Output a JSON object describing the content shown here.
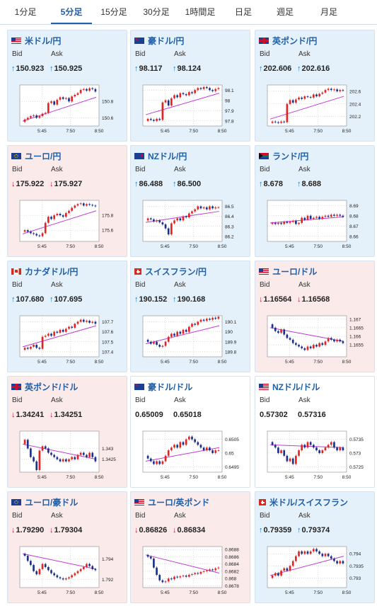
{
  "tabs": [
    {
      "label": "1分足",
      "active": false
    },
    {
      "label": "5分足",
      "active": true
    },
    {
      "label": "15分足",
      "active": false
    },
    {
      "label": "30分足",
      "active": false
    },
    {
      "label": "1時間足",
      "active": false
    },
    {
      "label": "日足",
      "active": false
    },
    {
      "label": "週足",
      "active": false
    },
    {
      "label": "月足",
      "active": false
    }
  ],
  "colors": {
    "accent": "#1f5fa8",
    "up_arrow": "#1a73c7",
    "down_arrow": "#c8102e",
    "up_bg": "#e4f1fb",
    "down_bg": "#fbeaea",
    "candle_up": "#e02424",
    "candle_down": "#1c2f8a",
    "ma": "#c13ad6",
    "trend": "#3aa0d8"
  },
  "bid_label": "Bid",
  "ask_label": "Ask",
  "cards": [
    {
      "name": "米ドル/円",
      "flag": "us",
      "tone": "up",
      "arrow_glyph": "↑",
      "arrow_dir": "up",
      "bid": "150.923",
      "ask": "150.925",
      "chart_data": {
        "type": "candlestick",
        "times": [
          "5:45",
          "7:50",
          "8:50"
        ],
        "y_ticks": [
          "150.8",
          "150.6"
        ],
        "ylim": [
          150.5,
          151.0
        ],
        "path": [
          150.55,
          150.58,
          150.6,
          150.62,
          150.63,
          150.6,
          150.62,
          150.65,
          150.66,
          150.78,
          150.8,
          150.76,
          150.82,
          150.85,
          150.83,
          150.84,
          150.8,
          150.86,
          150.88,
          150.9,
          150.94,
          150.95,
          150.93,
          150.96,
          150.95,
          150.92
        ],
        "ma_from": 150.56,
        "ma_to": 150.85
      }
    },
    {
      "name": "豪ドル/円",
      "flag": "au",
      "tone": "up",
      "arrow_glyph": "↑",
      "arrow_dir": "up",
      "bid": "98.117",
      "ask": "98.124",
      "chart_data": {
        "type": "candlestick",
        "times": [
          "5:45",
          "7:50",
          "8:50"
        ],
        "y_ticks": [
          "98.1",
          "98",
          "97.9",
          "97.8"
        ],
        "ylim": [
          97.75,
          98.15
        ],
        "path": [
          97.8,
          97.82,
          97.81,
          97.8,
          97.82,
          97.81,
          97.98,
          98.0,
          97.95,
          98.02,
          98.05,
          98.03,
          98.07,
          98.06,
          98.05,
          98.08,
          98.07,
          98.1,
          98.12,
          98.11,
          98.13,
          98.12,
          98.1,
          98.09,
          98.11,
          98.12
        ],
        "ma_from": 97.86,
        "ma_to": 98.07
      }
    },
    {
      "name": "英ポンド/円",
      "flag": "gb",
      "tone": "up",
      "arrow_glyph": "↑",
      "arrow_dir": "up",
      "bid": "202.606",
      "ask": "202.616",
      "chart_data": {
        "type": "candlestick",
        "times": [
          "5:45",
          "7:50",
          "8:50"
        ],
        "y_ticks": [
          "202.6",
          "202.4",
          "202.2"
        ],
        "ylim": [
          202.05,
          202.7
        ],
        "path": [
          202.1,
          202.12,
          202.11,
          202.1,
          202.12,
          202.11,
          202.4,
          202.46,
          202.42,
          202.47,
          202.5,
          202.48,
          202.52,
          202.51,
          202.5,
          202.55,
          202.52,
          202.56,
          202.58,
          202.62,
          202.64,
          202.62,
          202.63,
          202.6,
          202.62,
          202.61
        ],
        "ma_from": 202.16,
        "ma_to": 202.52
      }
    },
    {
      "name": "ユーロ/円",
      "flag": "eu",
      "tone": "down",
      "arrow_glyph": "↓",
      "arrow_dir": "down",
      "bid": "175.922",
      "ask": "175.927",
      "chart_data": {
        "type": "candlestick",
        "times": [
          "5:45",
          "7:50",
          "8:50"
        ],
        "y_ticks": [
          "175.8",
          "175.6"
        ],
        "ylim": [
          175.45,
          176.0
        ],
        "path": [
          175.58,
          175.6,
          175.58,
          175.56,
          175.55,
          175.53,
          175.52,
          175.56,
          175.7,
          175.78,
          175.75,
          175.8,
          175.82,
          175.8,
          175.78,
          175.83,
          175.86,
          175.9,
          175.93,
          175.95,
          175.96,
          175.93,
          175.95,
          175.94,
          175.93,
          175.92
        ],
        "ma_from": 175.55,
        "ma_to": 175.86
      }
    },
    {
      "name": "NZドル/円",
      "flag": "nz",
      "tone": "up",
      "arrow_glyph": "↑",
      "arrow_dir": "up",
      "bid": "86.488",
      "ask": "86.500",
      "chart_data": {
        "type": "candlestick",
        "times": [
          "5:45",
          "7:50",
          "8:50"
        ],
        "y_ticks": [
          "86.5",
          "86.4",
          "86.3",
          "86.2"
        ],
        "ylim": [
          86.15,
          86.56
        ],
        "path": [
          86.36,
          86.38,
          86.37,
          86.35,
          86.36,
          86.34,
          86.32,
          86.28,
          86.22,
          86.33,
          86.36,
          86.38,
          86.36,
          86.4,
          86.39,
          86.43,
          86.45,
          86.47,
          86.5,
          86.48,
          86.49,
          86.47,
          86.5,
          86.48,
          86.49,
          86.49
        ],
        "ma_from": 86.34,
        "ma_to": 86.45
      }
    },
    {
      "name": "ランド/円",
      "flag": "za",
      "tone": "up",
      "arrow_glyph": "↑",
      "arrow_dir": "up",
      "bid": "8.678",
      "ask": "8.688",
      "chart_data": {
        "type": "candlestick",
        "times": [
          "5:45",
          "7:50",
          "8:50"
        ],
        "y_ticks": [
          "8.69",
          "8.68",
          "8.67",
          "8.66"
        ],
        "ylim": [
          8.655,
          8.695
        ],
        "path": [
          8.672,
          8.673,
          8.672,
          8.673,
          8.672,
          8.674,
          8.673,
          8.674,
          8.675,
          8.672,
          8.673,
          8.678,
          8.676,
          8.68,
          8.677,
          8.678,
          8.679,
          8.677,
          8.679,
          8.68,
          8.679,
          8.681,
          8.68,
          8.681,
          8.68,
          8.679
        ],
        "ma_from": 8.673,
        "ma_to": 8.679
      }
    },
    {
      "name": "カナダドル/円",
      "flag": "ca",
      "tone": "up",
      "arrow_glyph": "↑",
      "arrow_dir": "up",
      "bid": "107.680",
      "ask": "107.695",
      "chart_data": {
        "type": "candlestick",
        "times": [
          "5:45",
          "7:50",
          "8:50"
        ],
        "y_ticks": [
          "107.7",
          "107.6",
          "107.5",
          "107.4"
        ],
        "ylim": [
          107.35,
          107.76
        ],
        "path": [
          107.42,
          107.44,
          107.43,
          107.45,
          107.47,
          107.44,
          107.43,
          107.55,
          107.56,
          107.58,
          107.56,
          107.6,
          107.59,
          107.62,
          107.6,
          107.63,
          107.65,
          107.64,
          107.68,
          107.7,
          107.72,
          107.7,
          107.71,
          107.69,
          107.7,
          107.68
        ],
        "ma_from": 107.45,
        "ma_to": 107.66
      }
    },
    {
      "name": "スイスフラン/円",
      "flag": "ch",
      "tone": "up",
      "arrow_glyph": "↑",
      "arrow_dir": "up",
      "bid": "190.152",
      "ask": "190.168",
      "chart_data": {
        "type": "candlestick",
        "times": [
          "5:45",
          "7:50",
          "8:50"
        ],
        "y_ticks": [
          "190.1",
          "190",
          "189.9",
          "189.8"
        ],
        "ylim": [
          189.75,
          190.16
        ],
        "path": [
          189.92,
          189.9,
          189.88,
          189.9,
          189.87,
          189.85,
          189.86,
          189.9,
          189.95,
          189.98,
          189.96,
          190.0,
          189.98,
          190.02,
          190.0,
          190.05,
          190.08,
          190.07,
          190.1,
          190.12,
          190.11,
          190.13,
          190.12,
          190.14,
          190.13,
          190.15
        ],
        "ma_from": 189.88,
        "ma_to": 190.06
      }
    },
    {
      "name": "ユーロ/ドル",
      "flag": "us",
      "tone": "down",
      "arrow_glyph": "↓",
      "arrow_dir": "down",
      "bid": "1.16564",
      "ask": "1.16568",
      "chart_data": {
        "type": "candlestick",
        "times": [
          "5:45",
          "7:50",
          "8:50"
        ],
        "y_ticks": [
          "1.167",
          "1.1665",
          "1.166",
          "1.1655"
        ],
        "ylim": [
          1.1648,
          1.1672
        ],
        "path": [
          1.1667,
          1.1665,
          1.1663,
          1.1662,
          1.1664,
          1.1661,
          1.1659,
          1.1658,
          1.1656,
          1.1655,
          1.1654,
          1.1653,
          1.1652,
          1.1654,
          1.1653,
          1.1655,
          1.1654,
          1.1656,
          1.1655,
          1.1657,
          1.1659,
          1.1658,
          1.1657,
          1.1658,
          1.1657,
          1.1656
        ],
        "ma_from": 1.1665,
        "ma_to": 1.1657
      }
    },
    {
      "name": "英ポンド/ドル",
      "flag": "gb",
      "tone": "down",
      "arrow_glyph": "↓",
      "arrow_dir": "down",
      "bid": "1.34241",
      "ask": "1.34251",
      "chart_data": {
        "type": "candlestick",
        "times": [
          "5:45",
          "7:50",
          "8:50"
        ],
        "y_ticks": [
          "1.343",
          "1.3425"
        ],
        "ylim": [
          1.3419,
          1.3438
        ],
        "path": [
          1.3432,
          1.3434,
          1.343,
          1.3426,
          1.3424,
          1.342,
          1.3429,
          1.3431,
          1.343,
          1.3428,
          1.3427,
          1.3426,
          1.3425,
          1.3424,
          1.3425,
          1.3424,
          1.3425,
          1.3426,
          1.3425,
          1.3427,
          1.3428,
          1.3427,
          1.3426,
          1.3428,
          1.3426,
          1.3424
        ],
        "ma_from": 1.3432,
        "ma_to": 1.3425
      }
    },
    {
      "name": "豪ドル/ドル",
      "flag": "au",
      "tone": "flat",
      "arrow_glyph": "",
      "arrow_dir": "none",
      "bid": "0.65009",
      "ask": "0.65018",
      "chart_data": {
        "type": "candlestick",
        "times": [
          "5:45",
          "7:50",
          "8:50"
        ],
        "y_ticks": [
          "0.6505",
          "0.65",
          "0.6495"
        ],
        "ylim": [
          0.6493,
          0.6508
        ],
        "path": [
          0.6499,
          0.6498,
          0.6497,
          0.6496,
          0.6497,
          0.6496,
          0.6497,
          0.6499,
          0.6501,
          0.6502,
          0.6503,
          0.6502,
          0.6504,
          0.6503,
          0.6505,
          0.6506,
          0.6505,
          0.6504,
          0.6503,
          0.6502,
          0.6501,
          0.6502,
          0.6501,
          0.65,
          0.6501,
          0.6501
        ],
        "ma_from": 0.6497,
        "ma_to": 0.6502
      }
    },
    {
      "name": "NZドル/ドル",
      "flag": "us",
      "tone": "flat",
      "arrow_glyph": "",
      "arrow_dir": "none",
      "bid": "0.57302",
      "ask": "0.57316",
      "chart_data": {
        "type": "candlestick",
        "times": [
          "5:45",
          "7:50",
          "8:50"
        ],
        "y_ticks": [
          "0.5735",
          "0.573",
          "0.5725"
        ],
        "ylim": [
          0.5723,
          0.5738
        ],
        "path": [
          0.5734,
          0.5733,
          0.5732,
          0.573,
          0.5731,
          0.5729,
          0.5727,
          0.5728,
          0.5726,
          0.5729,
          0.5731,
          0.5733,
          0.5732,
          0.5734,
          0.5733,
          0.5732,
          0.5731,
          0.573,
          0.5731,
          0.5732,
          0.5733,
          0.5734,
          0.5732,
          0.5731,
          0.5732,
          0.5731
        ],
        "ma_from": 0.5733,
        "ma_to": 0.5732
      }
    },
    {
      "name": "ユーロ/豪ドル",
      "flag": "eu",
      "tone": "down",
      "arrow_glyph": "↓",
      "arrow_dir": "down",
      "bid": "1.79290",
      "ask": "1.79304",
      "chart_data": {
        "type": "candlestick",
        "times": [
          "5:45",
          "7:50",
          "8:50"
        ],
        "y_ticks": [
          "1.794",
          "1.792"
        ],
        "ylim": [
          1.7912,
          1.7952
        ],
        "path": [
          1.7945,
          1.7943,
          1.7938,
          1.7934,
          1.7928,
          1.7925,
          1.793,
          1.7935,
          1.7932,
          1.7929,
          1.7926,
          1.7924,
          1.7922,
          1.7921,
          1.792,
          1.7921,
          1.7922,
          1.7924,
          1.7926,
          1.7928,
          1.793,
          1.7932,
          1.7935,
          1.7933,
          1.793,
          1.7929
        ],
        "ma_from": 1.7945,
        "ma_to": 1.793
      }
    },
    {
      "name": "ユーロ/英ポンド",
      "flag": "us",
      "tone": "down",
      "arrow_glyph": "↓",
      "arrow_dir": "down",
      "bid": "0.86826",
      "ask": "0.86834",
      "chart_data": {
        "type": "candlestick",
        "times": [
          "5:45",
          "7:50",
          "8:50"
        ],
        "y_ticks": [
          "0.8688",
          "0.8686",
          "0.8684",
          "0.8682",
          "0.868",
          "0.8678"
        ],
        "ylim": [
          0.86775,
          0.86888
        ],
        "path": [
          0.86865,
          0.8686,
          0.86855,
          0.8683,
          0.8681,
          0.86795,
          0.8679,
          0.86792,
          0.868,
          0.86798,
          0.86805,
          0.86803,
          0.86806,
          0.86808,
          0.86805,
          0.8681,
          0.86812,
          0.86815,
          0.86813,
          0.86818,
          0.8682,
          0.86822,
          0.86825,
          0.86823,
          0.86828,
          0.8683
        ],
        "ma_from": 0.86865,
        "ma_to": 0.86815
      }
    },
    {
      "name": "米ドル/スイスフラン",
      "flag": "ch",
      "tone": "up",
      "arrow_glyph": "↑",
      "arrow_dir": "up",
      "bid": "0.79359",
      "ask": "0.79374",
      "chart_data": {
        "type": "candlestick",
        "times": [
          "5:45",
          "7:50",
          "8:50"
        ],
        "y_ticks": [
          "0.794",
          "0.7935",
          "0.793"
        ],
        "ylim": [
          0.7926,
          0.7943
        ],
        "path": [
          0.793,
          0.7931,
          0.7932,
          0.7931,
          0.7933,
          0.7934,
          0.7933,
          0.7935,
          0.7937,
          0.7939,
          0.7941,
          0.794,
          0.7941,
          0.794,
          0.7941,
          0.7942,
          0.7941,
          0.794,
          0.7939,
          0.794,
          0.7939,
          0.7938,
          0.7937,
          0.7936,
          0.7937,
          0.7936
        ],
        "ma_from": 0.7931,
        "ma_to": 0.7939
      }
    }
  ]
}
